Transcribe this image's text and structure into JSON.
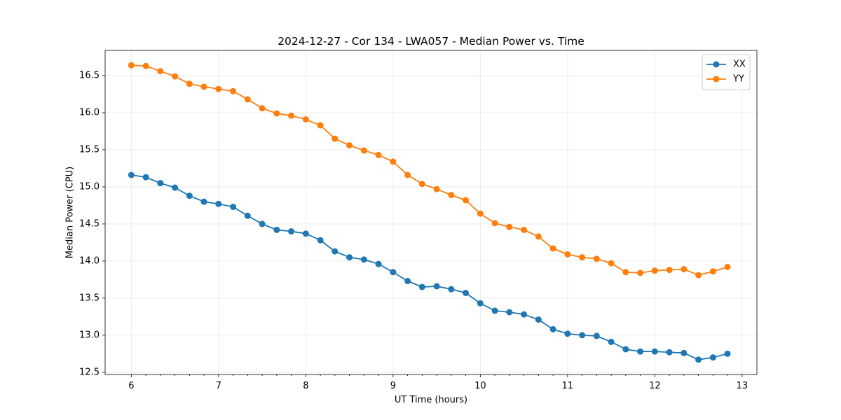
{
  "chart_data": {
    "type": "line",
    "title": "2024-12-27 - Cor 134 - LWA057 - Median Power vs. Time",
    "xlabel": "UT Time (hours)",
    "ylabel": "Median Power (CPU)",
    "xlim": [
      5.7,
      13.17
    ],
    "ylim": [
      12.47,
      16.84
    ],
    "xticks": [
      6,
      7,
      8,
      9,
      10,
      11,
      12,
      13
    ],
    "yticks": [
      12.5,
      13.0,
      13.5,
      14.0,
      14.5,
      15.0,
      15.5,
      16.0,
      16.5
    ],
    "grid": true,
    "legend_position": "top-right",
    "x": [
      6.0,
      6.167,
      6.333,
      6.5,
      6.667,
      6.833,
      7.0,
      7.167,
      7.333,
      7.5,
      7.667,
      7.833,
      8.0,
      8.167,
      8.333,
      8.5,
      8.667,
      8.833,
      9.0,
      9.167,
      9.333,
      9.5,
      9.667,
      9.833,
      10.0,
      10.167,
      10.333,
      10.5,
      10.667,
      10.833,
      11.0,
      11.167,
      11.333,
      11.5,
      11.667,
      11.833,
      12.0,
      12.167,
      12.333,
      12.5,
      12.667,
      12.833
    ],
    "series": [
      {
        "name": "XX",
        "color": "#1f77b4",
        "values": [
          15.16,
          15.13,
          15.05,
          14.99,
          14.88,
          14.8,
          14.77,
          14.73,
          14.61,
          14.5,
          14.42,
          14.4,
          14.37,
          14.28,
          14.13,
          14.05,
          14.02,
          13.96,
          13.85,
          13.73,
          13.65,
          13.66,
          13.62,
          13.57,
          13.43,
          13.33,
          13.31,
          13.28,
          13.21,
          13.08,
          13.02,
          13.0,
          12.99,
          12.91,
          12.81,
          12.78,
          12.78,
          12.77,
          12.76,
          12.67,
          12.7,
          12.75
        ]
      },
      {
        "name": "YY",
        "color": "#ff7f0e",
        "values": [
          16.64,
          16.63,
          16.56,
          16.49,
          16.39,
          16.35,
          16.32,
          16.29,
          16.18,
          16.06,
          15.99,
          15.96,
          15.91,
          15.83,
          15.65,
          15.56,
          15.49,
          15.43,
          15.34,
          15.16,
          15.04,
          14.97,
          14.89,
          14.82,
          14.64,
          14.51,
          14.46,
          14.42,
          14.33,
          14.17,
          14.09,
          14.05,
          14.03,
          13.97,
          13.85,
          13.84,
          13.87,
          13.88,
          13.89,
          13.81,
          13.86,
          13.92
        ]
      }
    ]
  }
}
